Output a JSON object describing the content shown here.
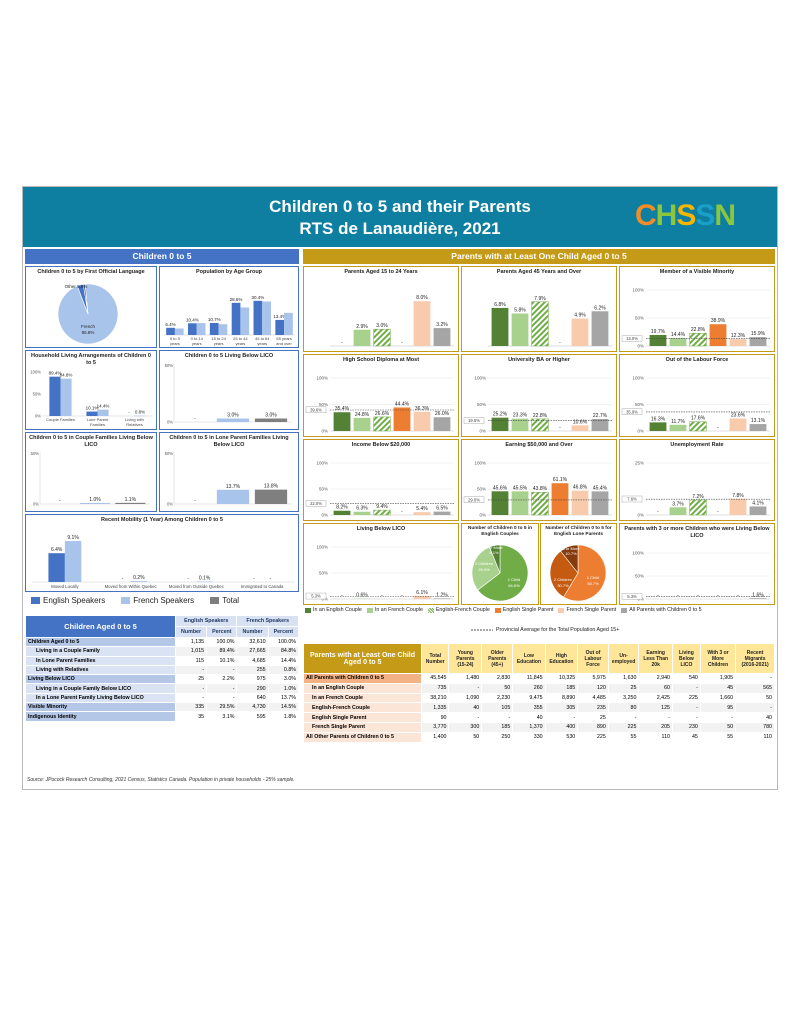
{
  "title": {
    "line1": "Children 0 to 5 and their Parents",
    "line2": "RTS de Lanaudière, 2021",
    "logo": [
      "C",
      "H",
      "S",
      "S",
      "N",
      ""
    ]
  },
  "sections": {
    "left": "Children 0 to 5",
    "right": "Parents with at Least One Child Aged 0 to 5"
  },
  "colors": {
    "eng": "#4472c4",
    "fre": "#a9c4eb",
    "total": "#7f7f7f",
    "c_en": "#548235",
    "c_fr": "#a9d18e",
    "c_ef": "#70ad47",
    "sp_en": "#ed7d31",
    "sp_fr": "#f8cbad",
    "allp": "#a5a5a5"
  },
  "left_legend": [
    "English Speakers",
    "French Speakers",
    "Total"
  ],
  "right_legend": [
    "In an English Couple",
    "In an French Couple",
    "English-French Couple",
    "English Single Parent",
    "French Single Parent",
    "All Parents with Children 0 to 5"
  ],
  "avg_legend": "Provincial Average for the Total Population Aged 15+",
  "chart_data": [
    {
      "id": "lang",
      "type": "pie",
      "title": "Children 0 to 5 by First Official Language",
      "slices": [
        {
          "label": "French",
          "value": 95.8
        },
        {
          "label": "English",
          "value": 3.3
        },
        {
          "label": "Other",
          "value": 0.9
        }
      ],
      "labels": [
        "Other 0.9%",
        "French",
        "95.8%"
      ]
    },
    {
      "id": "age",
      "type": "bar",
      "title": "Population by Age Group",
      "categories": [
        "0 to 5 years",
        "0 to 14 years",
        "15 to 24 years",
        "25 to 44 years",
        "45 to 64 years",
        "65 years and over"
      ],
      "cat_lines": [
        [
          "0 to 5",
          "years"
        ],
        [
          "0 to 14",
          "years"
        ],
        [
          "15 to 24",
          "years"
        ],
        [
          "25 to 44",
          "years"
        ],
        [
          "45 to 64",
          "years"
        ],
        [
          "65 years",
          "and over"
        ]
      ],
      "series": [
        {
          "values": [
            6.4,
            10.4,
            10.7,
            28.6,
            30.4,
            13.4
          ]
        },
        {
          "values": [
            5.8,
            10.6,
            9.6,
            24.5,
            29.8,
            19.7
          ]
        }
      ],
      "labels": [
        "6.4%",
        "10.4%",
        "10.7%",
        "28.6%",
        "30.4%",
        "13.4%"
      ]
    },
    {
      "id": "household",
      "type": "bar",
      "title": "Household Living Arrangements of Children 0 to 5",
      "categories": [
        "Couple Families",
        "Lone Parent Families",
        "Living with Relatives"
      ],
      "cat_lines": [
        [
          "Couple Families"
        ],
        [
          "Lone Parent",
          "Families"
        ],
        [
          "Living with",
          "Relatives"
        ]
      ],
      "series": [
        {
          "values": [
            89.4,
            10.1,
            null
          ]
        },
        {
          "values": [
            84.8,
            14.4,
            0.8
          ]
        }
      ],
      "labels": [
        [
          "89.4%",
          "10.1%",
          "-"
        ],
        [
          "84.8%",
          "14.4%",
          "0.8%"
        ]
      ],
      "yticks": [
        "100%",
        "50%",
        "0%"
      ]
    },
    {
      "id": "licoAll",
      "type": "bar",
      "title": "Children 0 to 5 Living Below LICO",
      "series": [
        {
          "values": [
            null,
            3.0,
            3.0
          ]
        }
      ],
      "labels": [
        "-",
        "3.0%",
        "3.0%"
      ],
      "yticks": [
        "50%",
        "0%"
      ]
    },
    {
      "id": "licoCouple",
      "type": "bar",
      "title": "Children 0 to 5 in Couple Families Living Below LICO",
      "series": [
        {
          "values": [
            null,
            1.0,
            1.1
          ]
        }
      ],
      "labels": [
        "-",
        "1.0%",
        "1.1%"
      ],
      "yticks": [
        "50%",
        "0%"
      ]
    },
    {
      "id": "licoLone",
      "type": "bar",
      "title": "Children 0 to 5 in Lone Parent Families Living Below LICO",
      "series": [
        {
          "values": [
            null,
            13.7,
            13.8
          ]
        }
      ],
      "labels": [
        "-",
        "13.7%",
        "13.8%"
      ],
      "yticks": [
        "50%",
        "0%"
      ]
    },
    {
      "id": "mobility",
      "type": "bar",
      "title": "Recent Mobility (1 Year) Among Children 0 to 5",
      "categories": [
        "Moved Locally",
        "Moved from Within Quebec",
        "Moved from Outside Quebec",
        "Immigrated to Canada"
      ],
      "series": [
        {
          "values": [
            6.4,
            null,
            null,
            null
          ]
        },
        {
          "values": [
            9.1,
            0.2,
            0.1,
            null
          ]
        }
      ],
      "labels": [
        [
          "6.4%",
          "-",
          "-",
          "-"
        ],
        [
          "9.1%",
          "0.2%",
          "0.1%",
          "-"
        ]
      ]
    },
    {
      "id": "p1524",
      "type": "bar",
      "title": "Parents Aged 15 to 24 Years",
      "values": [
        null,
        2.9,
        3.0,
        null,
        8.0,
        3.2
      ],
      "labels": [
        "-",
        "2.9%",
        "3.0%",
        "-",
        "8.0%",
        "3.2%"
      ],
      "ymax": 10
    },
    {
      "id": "p45",
      "type": "bar",
      "title": "Parents Aged 45 Years and Over",
      "values": [
        6.8,
        5.8,
        7.9,
        null,
        4.9,
        6.2
      ],
      "labels": [
        "6.8%",
        "5.8%",
        "7.9%",
        "-",
        "4.9%",
        "6.2%"
      ],
      "ymax": 10
    },
    {
      "id": "vismin",
      "type": "bar",
      "title": "Member of a Visible Minority",
      "values": [
        19.7,
        14.4,
        22.8,
        38.9,
        12.3,
        15.9
      ],
      "labels": [
        "19.7%",
        "14.4%",
        "22.8%",
        "38.9%",
        "12.3%",
        "15.9%"
      ],
      "ymax": 100,
      "yticks": [
        "100%",
        "50%",
        "0%"
      ],
      "avg": 13.0,
      "avg_label": "13.0%"
    },
    {
      "id": "hs",
      "type": "bar",
      "title": "High School Diploma at Most",
      "values": [
        35.4,
        24.8,
        26.6,
        44.4,
        36.3,
        26.0
      ],
      "labels": [
        "35.4%",
        "24.8%",
        "26.6%",
        "44.4%",
        "36.3%",
        "26.0%"
      ],
      "ymax": 100,
      "yticks": [
        "100%",
        "50%",
        "0%"
      ],
      "avg": 39.6,
      "avg_label": "39.6%"
    },
    {
      "id": "uni",
      "type": "bar",
      "title": "University BA or Higher",
      "values": [
        25.2,
        23.3,
        22.8,
        null,
        10.6,
        22.7
      ],
      "labels": [
        "25.2%",
        "23.3%",
        "22.8%",
        "-",
        "10.6%",
        "22.7%"
      ],
      "ymax": 100,
      "yticks": [
        "100%",
        "50%",
        "0%"
      ],
      "avg": 19.5,
      "avg_label": "19.5%"
    },
    {
      "id": "olf",
      "type": "bar",
      "title": "Out of the Labour Force",
      "values": [
        16.3,
        11.7,
        17.6,
        null,
        23.6,
        13.1
      ],
      "labels": [
        "16.3%",
        "11.7%",
        "17.6%",
        "-",
        "23.6%",
        "13.1%"
      ],
      "ymax": 100,
      "yticks": [
        "100%",
        "50%",
        "0%"
      ],
      "avg": 35.9,
      "avg_label": "35.9%"
    },
    {
      "id": "inc20",
      "type": "bar",
      "title": "Income Below $20,000",
      "values": [
        8.2,
        6.3,
        9.4,
        null,
        5.4,
        6.5
      ],
      "labels": [
        "8.2%",
        "6.3%",
        "9.4%",
        "-",
        "5.4%",
        "6.5%"
      ],
      "ymax": 100,
      "yticks": [
        "100%",
        "50%",
        "0%"
      ],
      "avg": 22.0,
      "avg_label": "22.0%"
    },
    {
      "id": "earn50",
      "type": "bar",
      "title": "Earning $50,000 and Over",
      "values": [
        45.6,
        45.5,
        43.8,
        61.1,
        46.8,
        45.4
      ],
      "labels": [
        "45.6%",
        "45.5%",
        "43.8%",
        "61.1%",
        "46.8%",
        "45.4%"
      ],
      "ymax": 100,
      "yticks": [
        "100%",
        "50%",
        "0%"
      ],
      "avg": 29.0,
      "avg_label": "29.0%"
    },
    {
      "id": "unemp",
      "type": "bar",
      "title": "Unemployment Rate",
      "values": [
        null,
        3.7,
        7.2,
        null,
        7.8,
        4.1
      ],
      "labels": [
        "-",
        "3.7%",
        "7.2%",
        "-",
        "7.8%",
        "4.1%"
      ],
      "ymax": 25,
      "yticks": [
        "25%",
        "0%"
      ],
      "avg": 7.6,
      "avg_label": "7.6%"
    },
    {
      "id": "plico",
      "type": "bar",
      "title": "Living Below LICO",
      "values": [
        null,
        0.6,
        null,
        null,
        6.1,
        1.2
      ],
      "labels": [
        "-",
        "0.6%",
        "-",
        "-",
        "6.1%",
        "1.2%"
      ],
      "ymax": 100,
      "yticks": [
        "100%",
        "50%",
        "0%"
      ],
      "avg": 5.3,
      "avg_label": "5.3%"
    },
    {
      "id": "pieCouple",
      "type": "pie",
      "title": "Number of Children 0 to 5 in English Couples",
      "slices": [
        {
          "label": "1 Child",
          "value": 64.6
        },
        {
          "label": "2 Children",
          "value": 29.3
        },
        {
          "label": "3 or More",
          "value": 6.1
        }
      ],
      "labels": [
        [
          "1 Child",
          "64.6%"
        ],
        [
          "2 Children",
          "29.3%"
        ],
        [
          "3 or More",
          "6.1%"
        ]
      ]
    },
    {
      "id": "pieLone",
      "type": "pie",
      "title": "Number of Children 0 to 5 for English Lone Parents",
      "slices": [
        {
          "label": "1 Child",
          "value": 58.7
        },
        {
          "label": "2 Children",
          "value": 30.7
        },
        {
          "label": "3 or More",
          "value": 10.7
        }
      ],
      "labels": [
        [
          "1 Child",
          "58.7%"
        ],
        [
          "2 Children",
          "30.7%"
        ],
        [
          "3 or More",
          "10.7%"
        ]
      ]
    },
    {
      "id": "p3kids",
      "type": "bar",
      "title": "Parents with 3 or more Children who were Living Below LICO",
      "values": [
        null,
        null,
        null,
        null,
        null,
        1.6
      ],
      "labels": [
        "-",
        "-",
        "-",
        "-",
        "-",
        "1.6%"
      ],
      "ymax": 100,
      "yticks": [
        "100%",
        "50%",
        "0%"
      ],
      "avg": 5.3,
      "avg_label": "5.3%"
    }
  ],
  "table_left": {
    "title": "Children Aged 0 to 5",
    "groups": [
      "English Speakers",
      "French Speakers"
    ],
    "cols": [
      "Number",
      "Percent",
      "Number",
      "Percent"
    ],
    "rows": [
      {
        "label": "Children Aged 0 to 5",
        "indent": false,
        "v": [
          "1,135",
          "100.0%",
          "32,610",
          "100.0%"
        ]
      },
      {
        "label": "Living in a Couple Family",
        "indent": true,
        "v": [
          "1,015",
          "89.4%",
          "27,665",
          "84.8%"
        ]
      },
      {
        "label": "In Lone Parent Families",
        "indent": true,
        "v": [
          "115",
          "10.1%",
          "4,685",
          "14.4%"
        ]
      },
      {
        "label": "Living with Relatives",
        "indent": true,
        "v": [
          "-",
          "-",
          "255",
          "0.8%"
        ]
      },
      {
        "label": "Living Below LICO",
        "indent": false,
        "v": [
          "25",
          "2.2%",
          "975",
          "3.0%"
        ]
      },
      {
        "label": "Living in a Couple Family Below LICO",
        "indent": true,
        "v": [
          "-",
          "-",
          "290",
          "1.0%"
        ]
      },
      {
        "label": "In a Lone Parent Family Living Below LICO",
        "indent": true,
        "v": [
          "-",
          "-",
          "640",
          "13.7%"
        ]
      },
      {
        "label": "Visible Minority",
        "indent": false,
        "v": [
          "335",
          "29.5%",
          "4,730",
          "14.5%"
        ]
      },
      {
        "label": "Indigenous Identity",
        "indent": false,
        "v": [
          "35",
          "3.1%",
          "595",
          "1.8%"
        ]
      }
    ]
  },
  "table_right": {
    "title": "Parents with at Least One Child Aged 0 to 5",
    "cols": [
      "Total Number",
      "Young Parents (15-24)",
      "Older Parents (45+)",
      "Low Education",
      "High Education",
      "Out of Labour Force",
      "Un-employed",
      "Earning Less Than 20k",
      "Living Below LICO",
      "With 3 or More Children",
      "Recent Migrants (2016-2021)"
    ],
    "rows": [
      {
        "label": "All Parents with Children 0 to 5",
        "v": [
          "45,545",
          "1,480",
          "2,830",
          "11,845",
          "10,325",
          "5,975",
          "1,630",
          "2,940",
          "540",
          "1,905",
          "-"
        ]
      },
      {
        "label": "In an English Couple",
        "v": [
          "735",
          "-",
          "50",
          "260",
          "185",
          "120",
          "25",
          "60",
          "-",
          "45",
          "565"
        ]
      },
      {
        "label": "In an French Couple",
        "v": [
          "38,210",
          "1,090",
          "2,230",
          "9,475",
          "8,890",
          "4,485",
          "3,250",
          "2,425",
          "225",
          "1,660",
          "50"
        ]
      },
      {
        "label": "English-French Couple",
        "v": [
          "1,335",
          "40",
          "105",
          "355",
          "305",
          "235",
          "80",
          "125",
          "-",
          "95",
          "-"
        ]
      },
      {
        "label": "English Single Parent",
        "v": [
          "90",
          "-",
          "-",
          "40",
          "-",
          "25",
          "-",
          "-",
          "-",
          "-",
          "40"
        ]
      },
      {
        "label": "French Single Parent",
        "v": [
          "3,770",
          "300",
          "185",
          "1,370",
          "400",
          "890",
          "225",
          "205",
          "230",
          "50",
          "780"
        ]
      },
      {
        "label": "All Other Parents of Children 0 to 5",
        "v": [
          "1,400",
          "50",
          "250",
          "330",
          "530",
          "225",
          "55",
          "110",
          "45",
          "55",
          "110"
        ]
      }
    ]
  },
  "source": "Source: JPocock Research Consulting, 2021 Census, Statistics Canada. Population in private households - 25% sample."
}
